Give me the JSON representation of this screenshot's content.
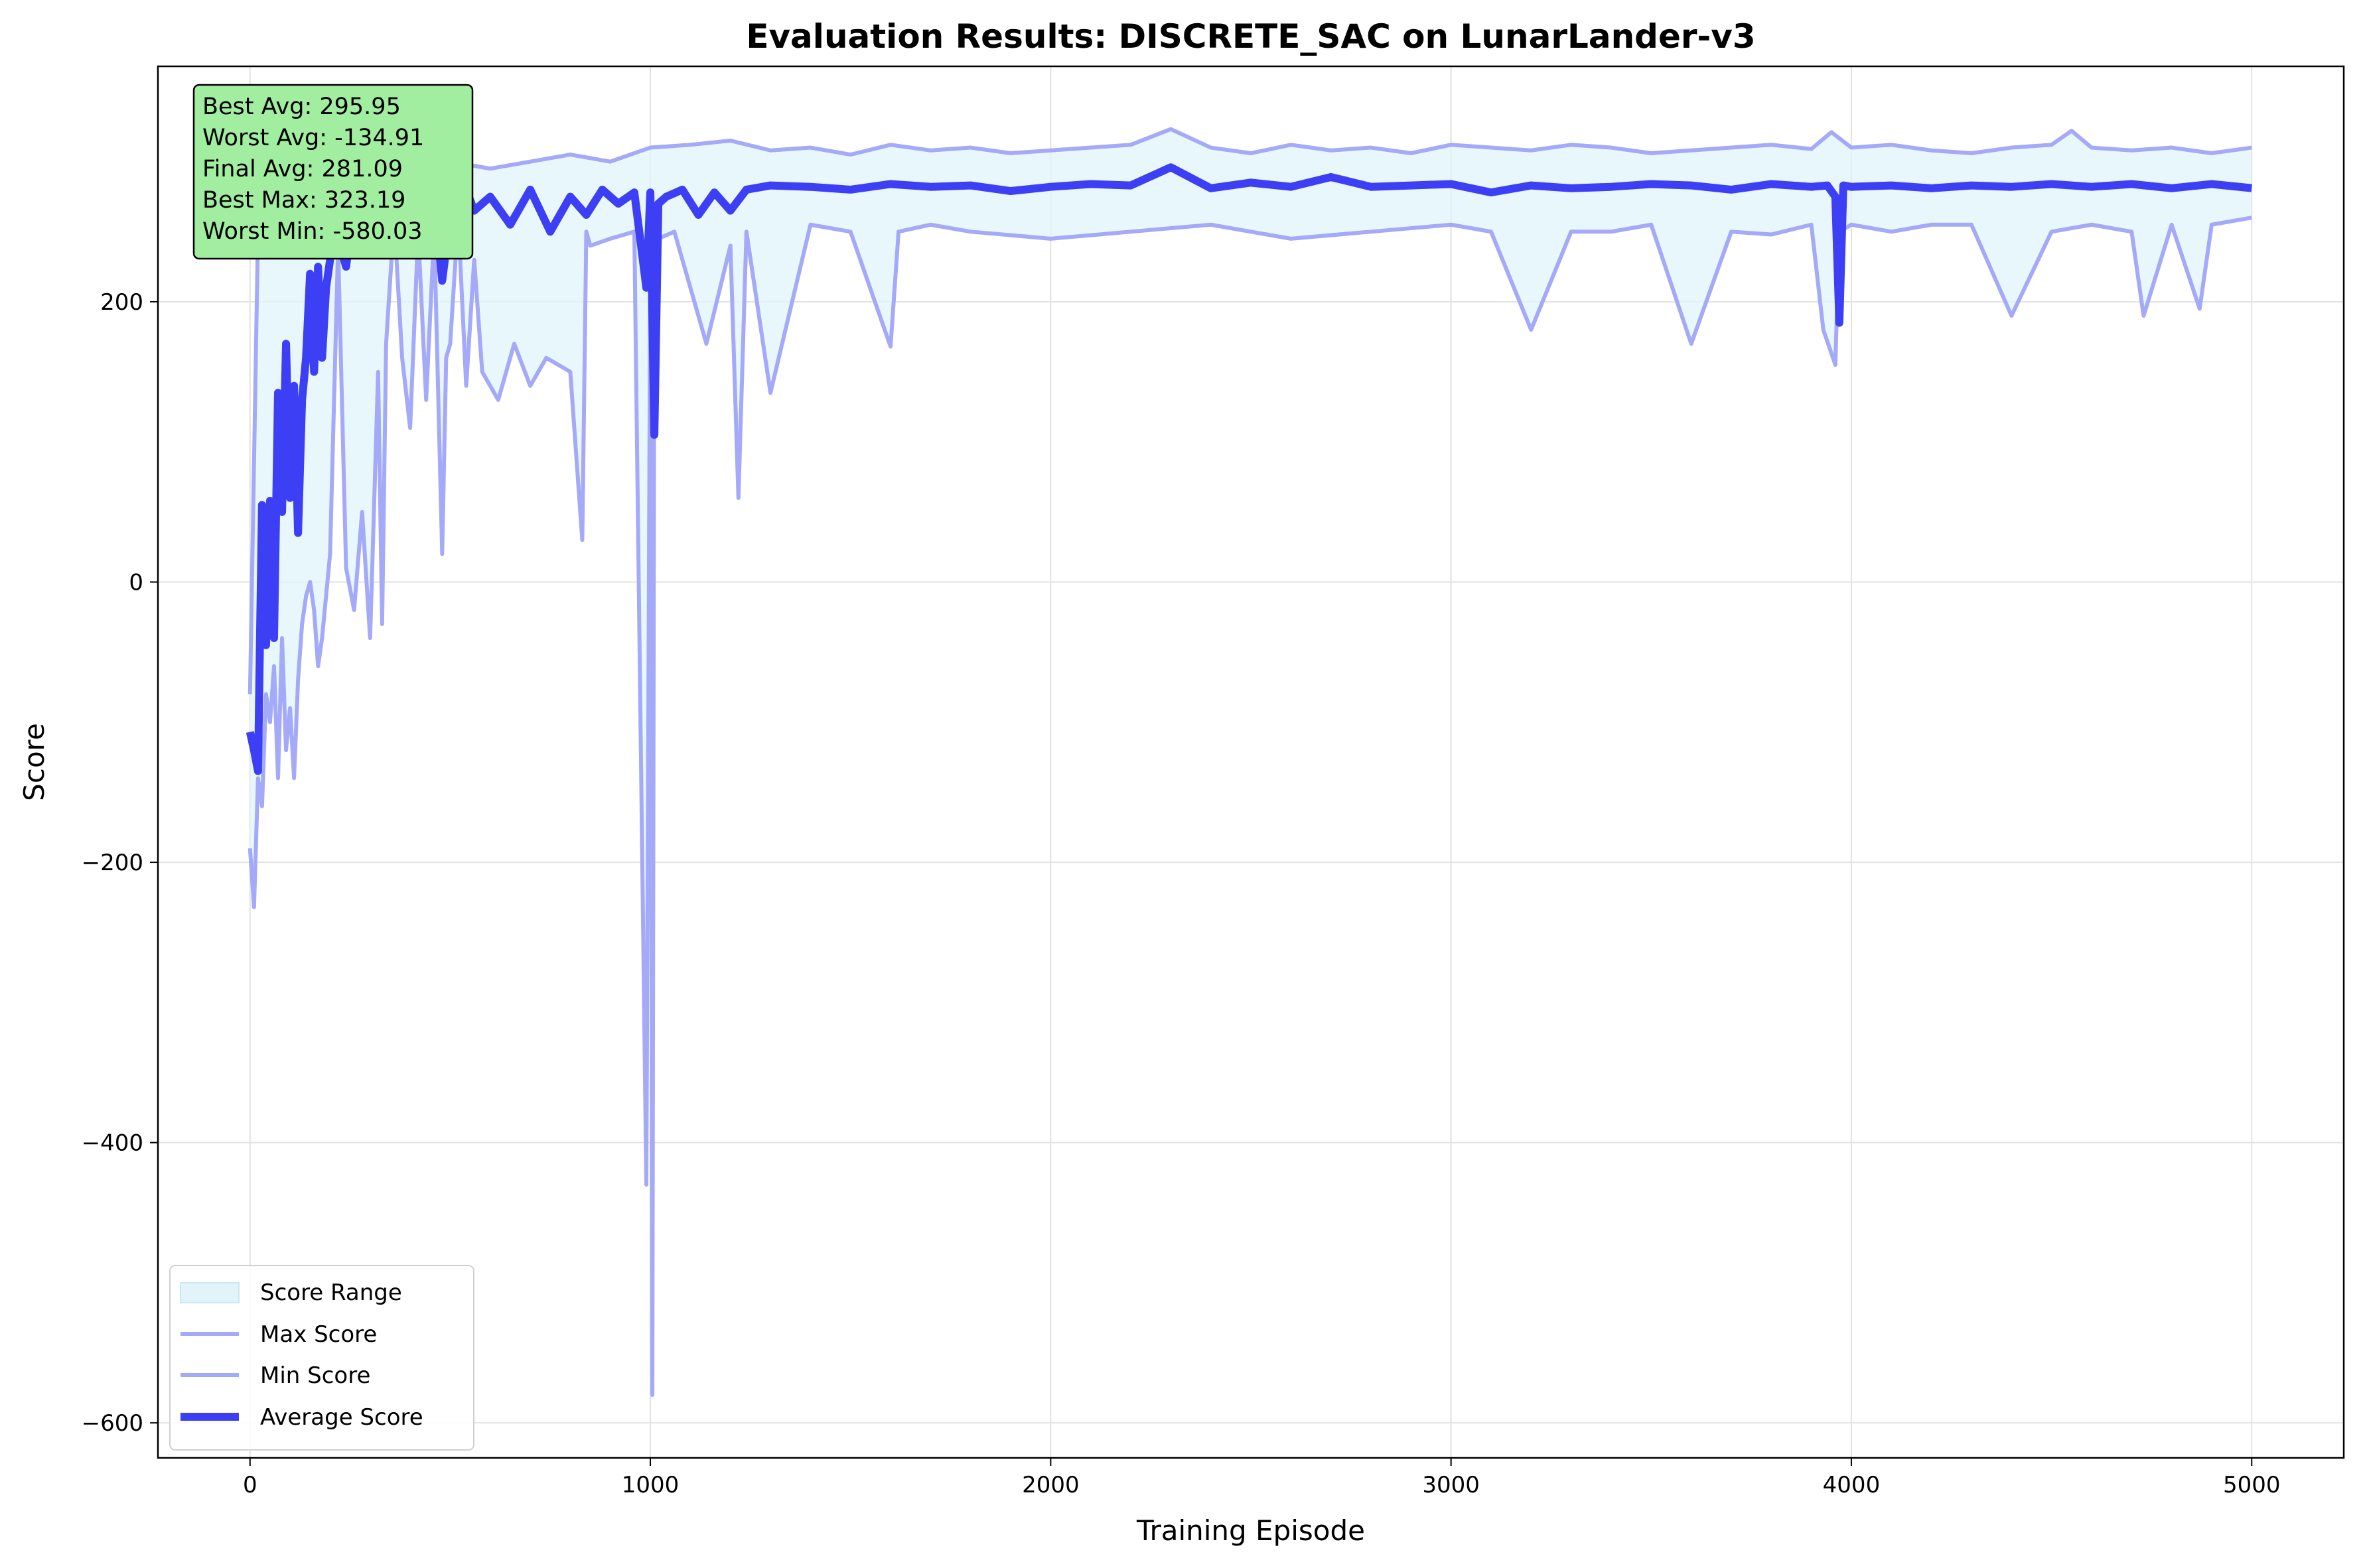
{
  "chart_data": {
    "type": "line",
    "title": "Evaluation Results: DISCRETE_SAC on LunarLander-v3",
    "xlabel": "Training Episode",
    "ylabel": "Score",
    "xlim": [
      -230,
      5230
    ],
    "ylim": [
      -625,
      368
    ],
    "xticks": [
      0,
      1000,
      2000,
      3000,
      4000,
      5000
    ],
    "yticks": [
      -600,
      -400,
      -200,
      0,
      200
    ],
    "xtick_labels": [
      "0",
      "1000",
      "2000",
      "3000",
      "4000",
      "5000"
    ],
    "ytick_labels": [
      "−600",
      "−400",
      "−200",
      "0",
      "200"
    ],
    "grid": true,
    "legend_location": "lower-left",
    "legend": [
      "Score Range",
      "Max Score",
      "Min Score",
      "Average Score"
    ],
    "stats_box": [
      "Best Avg: 295.95",
      "Worst Avg: -134.91",
      "Final Avg: 281.09",
      "Best Max: 323.19",
      "Worst Min: -580.03"
    ],
    "colors": {
      "range_fill": "#e0f4fa",
      "max_line": "#a4a9f8",
      "min_line": "#a4a9f8",
      "avg_line": "#3d3ff5",
      "stats_box_bg": "#a2eea1"
    },
    "series": [
      {
        "name": "Average Score",
        "x": [
          0,
          10,
          20,
          30,
          40,
          50,
          60,
          70,
          80,
          90,
          100,
          110,
          120,
          130,
          140,
          150,
          160,
          170,
          180,
          190,
          200,
          210,
          220,
          240,
          260,
          280,
          300,
          320,
          340,
          360,
          380,
          400,
          420,
          440,
          460,
          480,
          500,
          520,
          540,
          560,
          580,
          600,
          650,
          700,
          750,
          800,
          840,
          880,
          920,
          960,
          990,
          1000,
          1010,
          1020,
          1040,
          1080,
          1120,
          1160,
          1200,
          1240,
          1300,
          1400,
          1500,
          1600,
          1700,
          1800,
          1900,
          2000,
          2100,
          2200,
          2300,
          2400,
          2500,
          2600,
          2700,
          2800,
          2900,
          3000,
          3100,
          3200,
          3300,
          3400,
          3500,
          3600,
          3700,
          3800,
          3900,
          3940,
          3960,
          3970,
          3980,
          4000,
          4100,
          4200,
          4300,
          4400,
          4500,
          4600,
          4700,
          4800,
          4900,
          5000
        ],
        "values": [
          -107,
          -120,
          -134.91,
          55,
          -45,
          58,
          -40,
          135,
          50,
          170,
          60,
          140,
          35,
          130,
          160,
          220,
          150,
          225,
          160,
          210,
          230,
          255,
          245,
          225,
          270,
          240,
          265,
          235,
          275,
          250,
          270,
          260,
          280,
          240,
          275,
          215,
          260,
          255,
          280,
          265,
          270,
          275,
          255,
          280,
          250,
          275,
          262,
          280,
          270,
          278,
          210,
          278,
          105,
          270,
          275,
          280,
          262,
          278,
          265,
          280,
          283,
          282,
          280,
          284,
          282,
          283,
          279,
          282,
          284,
          283,
          295.95,
          281,
          285,
          282,
          289,
          282,
          283,
          284,
          278,
          283,
          281,
          282,
          284,
          283,
          280,
          284,
          282,
          283,
          275,
          185,
          283,
          282,
          283,
          281,
          283,
          282,
          284,
          282,
          284,
          281,
          284,
          281.09
        ]
      },
      {
        "name": "Max Score",
        "x": [
          0,
          20,
          40,
          60,
          80,
          100,
          150,
          200,
          250,
          300,
          400,
          500,
          600,
          700,
          800,
          900,
          1000,
          1100,
          1200,
          1300,
          1400,
          1500,
          1600,
          1700,
          1800,
          1900,
          2000,
          2100,
          2200,
          2300,
          2400,
          2500,
          2600,
          2700,
          2800,
          2900,
          3000,
          3100,
          3200,
          3300,
          3400,
          3500,
          3600,
          3700,
          3800,
          3900,
          3950,
          4000,
          4100,
          4200,
          4300,
          4400,
          4500,
          4550,
          4600,
          4700,
          4800,
          4900,
          5000
        ],
        "values": [
          -80,
          250,
          285,
          300,
          270,
          290,
          300,
          305,
          295,
          300,
          305,
          300,
          295,
          300,
          305,
          300,
          310,
          312,
          315,
          308,
          310,
          305,
          312,
          308,
          310,
          306,
          308,
          310,
          312,
          323.19,
          310,
          306,
          312,
          308,
          310,
          306,
          312,
          310,
          308,
          312,
          310,
          306,
          308,
          310,
          312,
          309,
          321,
          310,
          312,
          308,
          306,
          310,
          312,
          322,
          310,
          308,
          310,
          306,
          310
        ]
      },
      {
        "name": "Min Score",
        "x": [
          0,
          10,
          20,
          30,
          40,
          50,
          60,
          70,
          80,
          90,
          100,
          110,
          120,
          130,
          140,
          150,
          160,
          170,
          180,
          190,
          200,
          220,
          240,
          260,
          280,
          300,
          320,
          330,
          340,
          360,
          380,
          400,
          420,
          440,
          460,
          480,
          490,
          500,
          520,
          540,
          560,
          580,
          620,
          660,
          700,
          740,
          800,
          830,
          840,
          850,
          900,
          960,
          990,
          1000,
          1005,
          1010,
          1020,
          1060,
          1140,
          1200,
          1220,
          1240,
          1300,
          1400,
          1500,
          1600,
          1620,
          1700,
          1800,
          2000,
          2200,
          2400,
          2600,
          2800,
          3000,
          3100,
          3200,
          3300,
          3400,
          3500,
          3600,
          3700,
          3800,
          3900,
          3930,
          3960,
          3970,
          4000,
          4100,
          4200,
          4300,
          4400,
          4500,
          4600,
          4700,
          4730,
          4800,
          4870,
          4900,
          5000
        ],
        "values": [
          -190,
          -232,
          -140,
          -160,
          -80,
          -100,
          -60,
          -140,
          -40,
          -120,
          -90,
          -140,
          -70,
          -30,
          -10,
          0,
          -20,
          -60,
          -40,
          -10,
          20,
          240,
          10,
          -20,
          50,
          -40,
          150,
          -30,
          170,
          260,
          160,
          110,
          250,
          130,
          250,
          20,
          160,
          170,
          260,
          140,
          230,
          150,
          130,
          170,
          140,
          160,
          150,
          30,
          250,
          240,
          245,
          250,
          -430,
          240,
          -580.03,
          240,
          245,
          250,
          170,
          240,
          60,
          250,
          135,
          255,
          250,
          168,
          250,
          255,
          250,
          245,
          250,
          255,
          245,
          250,
          255,
          250,
          180,
          250,
          250,
          255,
          170,
          250,
          248,
          255,
          180,
          155,
          250,
          255,
          250,
          255,
          255,
          190,
          250,
          255,
          250,
          190,
          255,
          195,
          255,
          260
        ]
      }
    ]
  }
}
